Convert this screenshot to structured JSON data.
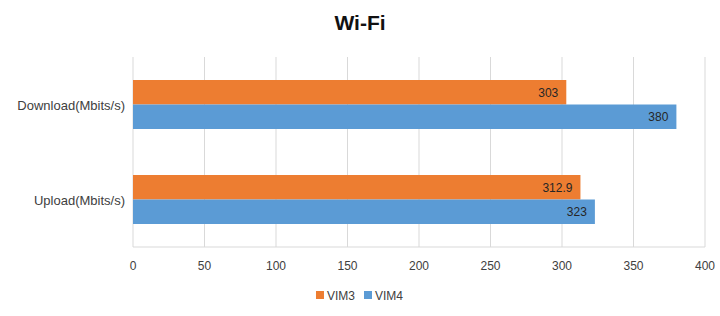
{
  "chart_data": {
    "type": "bar",
    "orientation": "horizontal",
    "title": "Wi-Fi",
    "categories": [
      "Download(Mbits/s)",
      "Upload(Mbits/s)"
    ],
    "series": [
      {
        "name": "VIM3",
        "color": "#ed7d31",
        "values": [
          303,
          312.9
        ]
      },
      {
        "name": "VIM4",
        "color": "#5b9bd5",
        "values": [
          380,
          323
        ]
      }
    ],
    "xlim": [
      0,
      400
    ],
    "xticks": [
      0,
      50,
      100,
      150,
      200,
      250,
      300,
      350,
      400
    ],
    "grid": true,
    "legend": "bottom",
    "data_labels": true
  }
}
